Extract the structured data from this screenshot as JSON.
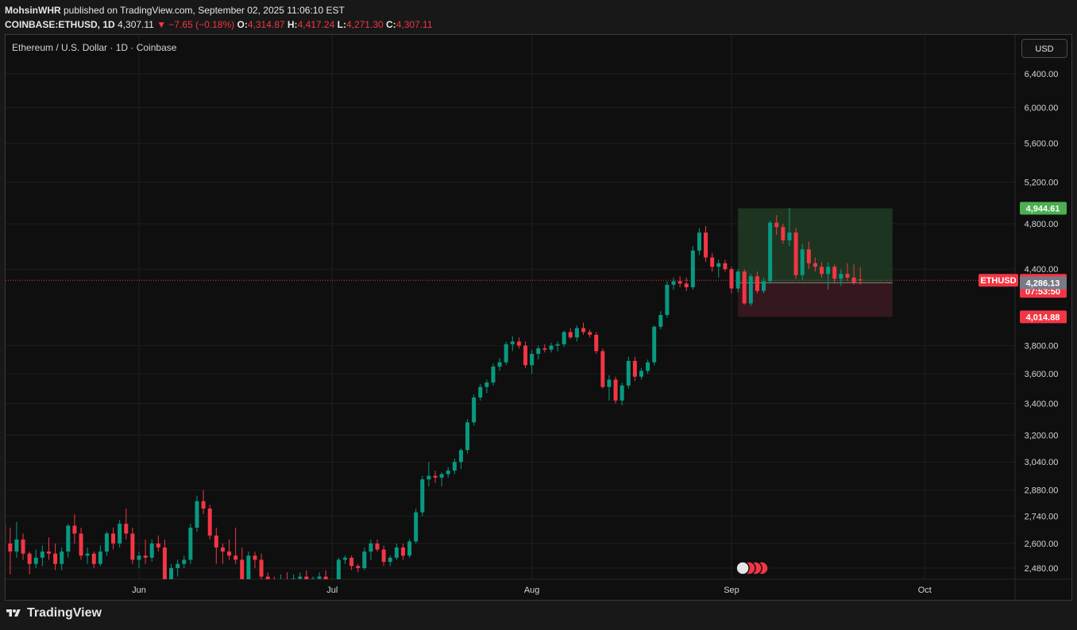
{
  "header": {
    "publisher": "MohsinWHR",
    "published_text": "published on TradingView.com, September 02, 2025 11:06:10 EST",
    "symbol": "COINBASE:ETHUSD, 1D",
    "last": "4,307.11",
    "change": "▼ −7.65 (−0.18%)",
    "o_label": "O:",
    "o_value": "4,314.87",
    "h_label": "H:",
    "h_value": "4,417.24",
    "l_label": "L:",
    "l_value": "4,271.30",
    "c_label": "C:",
    "c_value": "4,307.11"
  },
  "chart_title": "Ethereum / U.S. Dollar · 1D · Coinbase",
  "currency_button": "USD",
  "footer_brand": "TradingView",
  "colors": {
    "up": "#089981",
    "down": "#f23645",
    "background": "#0f0f0f",
    "grid": "#1f1f1f",
    "target_zone": "#1f3a22",
    "stop_zone": "#3a1a1f"
  },
  "chart_data": {
    "type": "candlestick",
    "title": "Ethereum / U.S. Dollar · 1D · Coinbase",
    "ytick_labels": [
      "6,400.00",
      "6,000.00",
      "5,600.00",
      "5,200.00",
      "4,800.00",
      "4,400.00",
      "3,800.00",
      "3,600.00",
      "3,400.00",
      "3,200.00",
      "3,040.00",
      "2,880.00",
      "2,740.00",
      "2,600.00",
      "2,480.00"
    ],
    "yticks": [
      6400,
      6000,
      5600,
      5200,
      4800,
      4400,
      3800,
      3600,
      3400,
      3200,
      3040,
      2880,
      2740,
      2600,
      2480
    ],
    "scale": "log",
    "xtick_labels": [
      "Jun",
      "Jul",
      "Aug",
      "Sep",
      "Oct"
    ],
    "xtick_dates": [
      "2025-06-01",
      "2025-07-01",
      "2025-08-01",
      "2025-09-01",
      "2025-10-01"
    ],
    "markers": [
      {
        "label": "ETHUSD",
        "value": 4307.11,
        "color": "#f23645"
      },
      {
        "label": "4,944.61",
        "value": 4944.61,
        "color": "#4caf50"
      },
      {
        "label": "4,307.11",
        "value": 4307.11,
        "color": "#f23645"
      },
      {
        "label": "07:53:50",
        "value": null,
        "color": "#f23645"
      },
      {
        "label": "4,286.13",
        "value": 4286.13,
        "color": "#787b86"
      },
      {
        "label": "4,014.88",
        "value": 4014.88,
        "color": "#f23645"
      }
    ],
    "position": {
      "entry": 4286.13,
      "target": 4944.61,
      "stop": 4014.88,
      "start_date": "2025-09-02",
      "end_date": "2025-09-26"
    },
    "candles": [
      {
        "d": "2025-05-09",
        "o": 2580,
        "h": 2620,
        "l": 2480,
        "c": 2500
      },
      {
        "d": "2025-05-10",
        "o": 2500,
        "h": 2760,
        "l": 2460,
        "c": 2700
      },
      {
        "d": "2025-05-11",
        "o": 2700,
        "h": 2730,
        "l": 2550,
        "c": 2600
      },
      {
        "d": "2025-05-12",
        "o": 2600,
        "h": 2680,
        "l": 2450,
        "c": 2560
      },
      {
        "d": "2025-05-13",
        "o": 2560,
        "h": 2710,
        "l": 2530,
        "c": 2620
      },
      {
        "d": "2025-05-14",
        "o": 2620,
        "h": 2650,
        "l": 2520,
        "c": 2550
      },
      {
        "d": "2025-05-15",
        "o": 2550,
        "h": 2560,
        "l": 2450,
        "c": 2500
      },
      {
        "d": "2025-05-16",
        "o": 2500,
        "h": 2570,
        "l": 2480,
        "c": 2530
      },
      {
        "d": "2025-05-17",
        "o": 2530,
        "h": 2590,
        "l": 2490,
        "c": 2560
      },
      {
        "d": "2025-05-18",
        "o": 2560,
        "h": 2630,
        "l": 2520,
        "c": 2550
      },
      {
        "d": "2025-05-19",
        "o": 2550,
        "h": 2600,
        "l": 2470,
        "c": 2500
      },
      {
        "d": "2025-05-20",
        "o": 2500,
        "h": 2580,
        "l": 2470,
        "c": 2560
      },
      {
        "d": "2025-05-21",
        "o": 2560,
        "h": 2700,
        "l": 2530,
        "c": 2690
      },
      {
        "d": "2025-05-22",
        "o": 2690,
        "h": 2750,
        "l": 2600,
        "c": 2650
      },
      {
        "d": "2025-05-23",
        "o": 2650,
        "h": 2680,
        "l": 2520,
        "c": 2540
      },
      {
        "d": "2025-05-24",
        "o": 2540,
        "h": 2580,
        "l": 2500,
        "c": 2550
      },
      {
        "d": "2025-05-25",
        "o": 2550,
        "h": 2560,
        "l": 2480,
        "c": 2500
      },
      {
        "d": "2025-05-26",
        "o": 2500,
        "h": 2590,
        "l": 2490,
        "c": 2560
      },
      {
        "d": "2025-05-27",
        "o": 2560,
        "h": 2660,
        "l": 2540,
        "c": 2650
      },
      {
        "d": "2025-05-28",
        "o": 2650,
        "h": 2680,
        "l": 2570,
        "c": 2600
      },
      {
        "d": "2025-05-29",
        "o": 2600,
        "h": 2720,
        "l": 2580,
        "c": 2700
      },
      {
        "d": "2025-05-30",
        "o": 2700,
        "h": 2780,
        "l": 2620,
        "c": 2650
      },
      {
        "d": "2025-05-31",
        "o": 2650,
        "h": 2680,
        "l": 2500,
        "c": 2520
      },
      {
        "d": "2025-06-01",
        "o": 2520,
        "h": 2560,
        "l": 2480,
        "c": 2540
      },
      {
        "d": "2025-06-02",
        "o": 2540,
        "h": 2620,
        "l": 2500,
        "c": 2530
      },
      {
        "d": "2025-06-03",
        "o": 2530,
        "h": 2620,
        "l": 2510,
        "c": 2600
      },
      {
        "d": "2025-06-04",
        "o": 2600,
        "h": 2640,
        "l": 2560,
        "c": 2580
      },
      {
        "d": "2025-06-05",
        "o": 2580,
        "h": 2620,
        "l": 2400,
        "c": 2420
      },
      {
        "d": "2025-06-06",
        "o": 2420,
        "h": 2500,
        "l": 2400,
        "c": 2480
      },
      {
        "d": "2025-06-07",
        "o": 2480,
        "h": 2520,
        "l": 2440,
        "c": 2500
      },
      {
        "d": "2025-06-08",
        "o": 2500,
        "h": 2540,
        "l": 2480,
        "c": 2520
      },
      {
        "d": "2025-06-09",
        "o": 2520,
        "h": 2700,
        "l": 2500,
        "c": 2680
      },
      {
        "d": "2025-06-10",
        "o": 2680,
        "h": 2850,
        "l": 2660,
        "c": 2820
      },
      {
        "d": "2025-06-11",
        "o": 2820,
        "h": 2880,
        "l": 2750,
        "c": 2780
      },
      {
        "d": "2025-06-12",
        "o": 2780,
        "h": 2800,
        "l": 2620,
        "c": 2640
      },
      {
        "d": "2025-06-13",
        "o": 2640,
        "h": 2680,
        "l": 2500,
        "c": 2580
      },
      {
        "d": "2025-06-14",
        "o": 2580,
        "h": 2600,
        "l": 2500,
        "c": 2560
      },
      {
        "d": "2025-06-15",
        "o": 2560,
        "h": 2620,
        "l": 2520,
        "c": 2540
      },
      {
        "d": "2025-06-16",
        "o": 2540,
        "h": 2680,
        "l": 2500,
        "c": 2520
      },
      {
        "d": "2025-06-17",
        "o": 2520,
        "h": 2580,
        "l": 2400,
        "c": 2420
      },
      {
        "d": "2025-06-18",
        "o": 2420,
        "h": 2560,
        "l": 2400,
        "c": 2540
      },
      {
        "d": "2025-06-19",
        "o": 2540,
        "h": 2560,
        "l": 2480,
        "c": 2520
      },
      {
        "d": "2025-06-20",
        "o": 2520,
        "h": 2550,
        "l": 2420,
        "c": 2440
      },
      {
        "d": "2025-06-21",
        "o": 2440,
        "h": 2460,
        "l": 2380,
        "c": 2400
      },
      {
        "d": "2025-06-22",
        "o": 2400,
        "h": 2440,
        "l": 2300,
        "c": 2350
      },
      {
        "d": "2025-06-23",
        "o": 2350,
        "h": 2450,
        "l": 2300,
        "c": 2420
      },
      {
        "d": "2025-06-24",
        "o": 2420,
        "h": 2460,
        "l": 2380,
        "c": 2400
      },
      {
        "d": "2025-06-25",
        "o": 2400,
        "h": 2450,
        "l": 2380,
        "c": 2430
      },
      {
        "d": "2025-06-26",
        "o": 2430,
        "h": 2460,
        "l": 2400,
        "c": 2440
      },
      {
        "d": "2025-06-27",
        "o": 2440,
        "h": 2470,
        "l": 2400,
        "c": 2410
      },
      {
        "d": "2025-06-28",
        "o": 2410,
        "h": 2440,
        "l": 2400,
        "c": 2430
      },
      {
        "d": "2025-06-29",
        "o": 2430,
        "h": 2460,
        "l": 2410,
        "c": 2440
      },
      {
        "d": "2025-06-30",
        "o": 2440,
        "h": 2470,
        "l": 2390,
        "c": 2410
      },
      {
        "d": "2025-07-01",
        "o": 2410,
        "h": 2430,
        "l": 2350,
        "c": 2380
      },
      {
        "d": "2025-07-02",
        "o": 2380,
        "h": 2530,
        "l": 2370,
        "c": 2520
      },
      {
        "d": "2025-07-03",
        "o": 2520,
        "h": 2540,
        "l": 2500,
        "c": 2530
      },
      {
        "d": "2025-07-04",
        "o": 2530,
        "h": 2540,
        "l": 2470,
        "c": 2490
      },
      {
        "d": "2025-07-05",
        "o": 2490,
        "h": 2500,
        "l": 2460,
        "c": 2480
      },
      {
        "d": "2025-07-06",
        "o": 2480,
        "h": 2580,
        "l": 2470,
        "c": 2560
      },
      {
        "d": "2025-07-07",
        "o": 2560,
        "h": 2620,
        "l": 2520,
        "c": 2600
      },
      {
        "d": "2025-07-08",
        "o": 2600,
        "h": 2620,
        "l": 2560,
        "c": 2570
      },
      {
        "d": "2025-07-09",
        "o": 2570,
        "h": 2590,
        "l": 2490,
        "c": 2510
      },
      {
        "d": "2025-07-10",
        "o": 2510,
        "h": 2540,
        "l": 2490,
        "c": 2530
      },
      {
        "d": "2025-07-11",
        "o": 2530,
        "h": 2600,
        "l": 2520,
        "c": 2580
      },
      {
        "d": "2025-07-12",
        "o": 2580,
        "h": 2600,
        "l": 2520,
        "c": 2540
      },
      {
        "d": "2025-07-13",
        "o": 2540,
        "h": 2620,
        "l": 2530,
        "c": 2610
      },
      {
        "d": "2025-07-14",
        "o": 2610,
        "h": 2780,
        "l": 2600,
        "c": 2760
      },
      {
        "d": "2025-07-15",
        "o": 2760,
        "h": 2960,
        "l": 2740,
        "c": 2940
      },
      {
        "d": "2025-07-16",
        "o": 2940,
        "h": 3040,
        "l": 2900,
        "c": 2960
      },
      {
        "d": "2025-07-17",
        "o": 2960,
        "h": 2990,
        "l": 2920,
        "c": 2950
      },
      {
        "d": "2025-07-18",
        "o": 2950,
        "h": 2980,
        "l": 2900,
        "c": 2970
      },
      {
        "d": "2025-07-19",
        "o": 2970,
        "h": 3010,
        "l": 2950,
        "c": 2990
      },
      {
        "d": "2025-07-20",
        "o": 2990,
        "h": 3060,
        "l": 2970,
        "c": 3040
      },
      {
        "d": "2025-07-21",
        "o": 3040,
        "h": 3120,
        "l": 3000,
        "c": 3110
      },
      {
        "d": "2025-07-22",
        "o": 3110,
        "h": 3300,
        "l": 3090,
        "c": 3280
      },
      {
        "d": "2025-07-23",
        "o": 3280,
        "h": 3460,
        "l": 3260,
        "c": 3440
      },
      {
        "d": "2025-07-24",
        "o": 3440,
        "h": 3530,
        "l": 3420,
        "c": 3510
      },
      {
        "d": "2025-07-25",
        "o": 3510,
        "h": 3560,
        "l": 3470,
        "c": 3540
      },
      {
        "d": "2025-07-26",
        "o": 3540,
        "h": 3670,
        "l": 3520,
        "c": 3650
      },
      {
        "d": "2025-07-27",
        "o": 3650,
        "h": 3710,
        "l": 3620,
        "c": 3680
      },
      {
        "d": "2025-07-28",
        "o": 3680,
        "h": 3830,
        "l": 3660,
        "c": 3810
      },
      {
        "d": "2025-07-29",
        "o": 3810,
        "h": 3870,
        "l": 3760,
        "c": 3830
      },
      {
        "d": "2025-07-30",
        "o": 3830,
        "h": 3860,
        "l": 3780,
        "c": 3800
      },
      {
        "d": "2025-07-31",
        "o": 3800,
        "h": 3830,
        "l": 3640,
        "c": 3660
      },
      {
        "d": "2025-08-01",
        "o": 3660,
        "h": 3770,
        "l": 3600,
        "c": 3740
      },
      {
        "d": "2025-08-02",
        "o": 3740,
        "h": 3800,
        "l": 3700,
        "c": 3780
      },
      {
        "d": "2025-08-03",
        "o": 3780,
        "h": 3810,
        "l": 3750,
        "c": 3770
      },
      {
        "d": "2025-08-04",
        "o": 3770,
        "h": 3820,
        "l": 3750,
        "c": 3800
      },
      {
        "d": "2025-08-05",
        "o": 3800,
        "h": 3830,
        "l": 3760,
        "c": 3810
      },
      {
        "d": "2025-08-06",
        "o": 3810,
        "h": 3910,
        "l": 3790,
        "c": 3900
      },
      {
        "d": "2025-08-07",
        "o": 3900,
        "h": 3930,
        "l": 3850,
        "c": 3860
      },
      {
        "d": "2025-08-08",
        "o": 3860,
        "h": 3950,
        "l": 3830,
        "c": 3930
      },
      {
        "d": "2025-08-09",
        "o": 3930,
        "h": 3970,
        "l": 3880,
        "c": 3900
      },
      {
        "d": "2025-08-10",
        "o": 3900,
        "h": 3920,
        "l": 3860,
        "c": 3880
      },
      {
        "d": "2025-08-11",
        "o": 3880,
        "h": 3900,
        "l": 3740,
        "c": 3760
      },
      {
        "d": "2025-08-12",
        "o": 3760,
        "h": 3780,
        "l": 3500,
        "c": 3510
      },
      {
        "d": "2025-08-13",
        "o": 3510,
        "h": 3590,
        "l": 3420,
        "c": 3560
      },
      {
        "d": "2025-08-14",
        "o": 3560,
        "h": 3580,
        "l": 3400,
        "c": 3420
      },
      {
        "d": "2025-08-15",
        "o": 3420,
        "h": 3540,
        "l": 3390,
        "c": 3520
      },
      {
        "d": "2025-08-16",
        "o": 3520,
        "h": 3720,
        "l": 3500,
        "c": 3690
      },
      {
        "d": "2025-08-17",
        "o": 3690,
        "h": 3720,
        "l": 3550,
        "c": 3580
      },
      {
        "d": "2025-08-18",
        "o": 3580,
        "h": 3640,
        "l": 3560,
        "c": 3620
      },
      {
        "d": "2025-08-19",
        "o": 3620,
        "h": 3700,
        "l": 3600,
        "c": 3680
      },
      {
        "d": "2025-08-20",
        "o": 3680,
        "h": 3950,
        "l": 3660,
        "c": 3940
      },
      {
        "d": "2025-08-21",
        "o": 3940,
        "h": 4060,
        "l": 3920,
        "c": 4030
      },
      {
        "d": "2025-08-22",
        "o": 4030,
        "h": 4300,
        "l": 4010,
        "c": 4270
      },
      {
        "d": "2025-08-23",
        "o": 4270,
        "h": 4330,
        "l": 4230,
        "c": 4300
      },
      {
        "d": "2025-08-24",
        "o": 4300,
        "h": 4340,
        "l": 4250,
        "c": 4280
      },
      {
        "d": "2025-08-25",
        "o": 4280,
        "h": 4330,
        "l": 4220,
        "c": 4250
      },
      {
        "d": "2025-08-26",
        "o": 4250,
        "h": 4600,
        "l": 4230,
        "c": 4560
      },
      {
        "d": "2025-08-27",
        "o": 4560,
        "h": 4760,
        "l": 4520,
        "c": 4720
      },
      {
        "d": "2025-08-28",
        "o": 4720,
        "h": 4780,
        "l": 4460,
        "c": 4500
      },
      {
        "d": "2025-08-29",
        "o": 4500,
        "h": 4540,
        "l": 4380,
        "c": 4420
      },
      {
        "d": "2025-08-30",
        "o": 4420,
        "h": 4480,
        "l": 4330,
        "c": 4450
      },
      {
        "d": "2025-08-31",
        "o": 4450,
        "h": 4480,
        "l": 4380,
        "c": 4400
      },
      {
        "d": "2025-09-01",
        "o": 4400,
        "h": 4420,
        "l": 4200,
        "c": 4240
      },
      {
        "d": "2025-09-02",
        "o": 4240,
        "h": 4400,
        "l": 4210,
        "c": 4380
      },
      {
        "d": "2025-09-03",
        "o": 4380,
        "h": 4400,
        "l": 4110,
        "c": 4120
      },
      {
        "d": "2025-09-04",
        "o": 4120,
        "h": 4360,
        "l": 4100,
        "c": 4340
      },
      {
        "d": "2025-09-05",
        "o": 4340,
        "h": 4380,
        "l": 4200,
        "c": 4220
      },
      {
        "d": "2025-09-06",
        "o": 4220,
        "h": 4330,
        "l": 4200,
        "c": 4300
      },
      {
        "d": "2025-09-07",
        "o": 4300,
        "h": 4830,
        "l": 4280,
        "c": 4810
      },
      {
        "d": "2025-09-08",
        "o": 4810,
        "h": 4880,
        "l": 4700,
        "c": 4770
      },
      {
        "d": "2025-09-09",
        "o": 4770,
        "h": 4800,
        "l": 4620,
        "c": 4650
      },
      {
        "d": "2025-09-10",
        "o": 4650,
        "h": 4950,
        "l": 4600,
        "c": 4720
      },
      {
        "d": "2025-09-11",
        "o": 4720,
        "h": 4760,
        "l": 4320,
        "c": 4350
      },
      {
        "d": "2025-09-12",
        "o": 4350,
        "h": 4620,
        "l": 4310,
        "c": 4570
      },
      {
        "d": "2025-09-13",
        "o": 4570,
        "h": 4640,
        "l": 4400,
        "c": 4450
      },
      {
        "d": "2025-09-14",
        "o": 4450,
        "h": 4500,
        "l": 4380,
        "c": 4420
      },
      {
        "d": "2025-09-15",
        "o": 4420,
        "h": 4460,
        "l": 4330,
        "c": 4360
      },
      {
        "d": "2025-09-16",
        "o": 4360,
        "h": 4460,
        "l": 4230,
        "c": 4420
      },
      {
        "d": "2025-09-17",
        "o": 4420,
        "h": 4440,
        "l": 4290,
        "c": 4320
      },
      {
        "d": "2025-09-18",
        "o": 4320,
        "h": 4400,
        "l": 4260,
        "c": 4360
      },
      {
        "d": "2025-09-19",
        "o": 4360,
        "h": 4450,
        "l": 4300,
        "c": 4330
      },
      {
        "d": "2025-09-20",
        "o": 4330,
        "h": 4440,
        "l": 4270,
        "c": 4290
      },
      {
        "d": "2025-09-21",
        "o": 4315,
        "h": 4417,
        "l": 4271,
        "c": 4307
      }
    ]
  }
}
